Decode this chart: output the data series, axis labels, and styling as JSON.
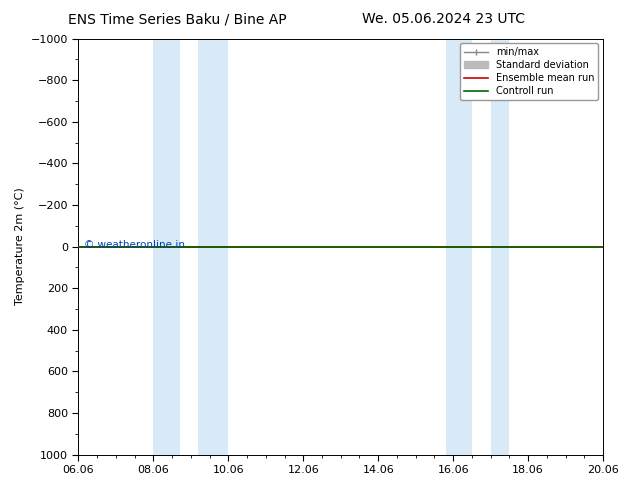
{
  "title_left": "ENS Time Series Baku / Bine AP",
  "title_right": "We. 05.06.2024 23 UTC",
  "ylabel": "Temperature 2m (°C)",
  "copyright": "© weatheronline.in",
  "xlim": [
    0,
    14
  ],
  "ylim_top": -1000,
  "ylim_bottom": 1000,
  "yticks": [
    -1000,
    -800,
    -600,
    -400,
    -200,
    0,
    200,
    400,
    600,
    800,
    1000
  ],
  "shaded_bands": [
    {
      "x_start": 2.0,
      "x_end": 3.5
    },
    {
      "x_start": 3.8,
      "x_end": 4.0
    },
    {
      "x_start": 9.8,
      "x_end": 10.8
    },
    {
      "x_start": 11.0,
      "x_end": 11.5
    }
  ],
  "shade_color": "#d8eaf8",
  "green_line_y": 0,
  "red_line_y": 0,
  "background_color": "#ffffff",
  "plot_background": "#ffffff",
  "legend_items": [
    {
      "label": "min/max",
      "color": "#888888",
      "lw": 1.0
    },
    {
      "label": "Standard deviation",
      "color": "#bbbbbb",
      "lw": 1.0
    },
    {
      "label": "Ensemble mean run",
      "color": "#cc0000",
      "lw": 1.2
    },
    {
      "label": "Controll run",
      "color": "#006600",
      "lw": 1.2
    }
  ],
  "xtick_labels": [
    "06.06",
    "08.06",
    "10.06",
    "12.06",
    "14.06",
    "16.06",
    "18.06",
    "20.06"
  ],
  "xtick_positions": [
    0,
    2,
    4,
    6,
    8,
    10,
    12,
    14
  ],
  "title_fontsize": 10,
  "axis_fontsize": 8,
  "tick_fontsize": 8,
  "copyright_color": "#0044aa"
}
